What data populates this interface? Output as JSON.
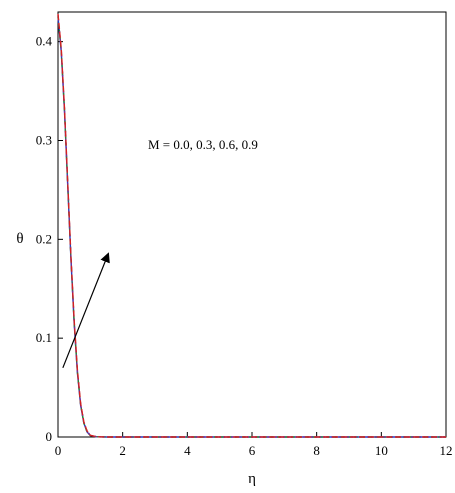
{
  "chart_data": {
    "type": "line",
    "title": "",
    "xlabel": "η",
    "ylabel": "θ",
    "xlim": [
      0,
      12
    ],
    "ylim": [
      0,
      0.43
    ],
    "xticks": [
      0,
      2,
      4,
      6,
      8,
      10,
      12
    ],
    "xtick_labels": [
      "0",
      "2",
      "4",
      "6",
      "8",
      "10",
      "12"
    ],
    "yticks": [
      0,
      0.1,
      0.2,
      0.3,
      0.4
    ],
    "ytick_labels": [
      "0",
      "0.1",
      "0.2",
      "0.3",
      "0.4"
    ],
    "grid": false,
    "annotation": "M = 0.0, 0.3, 0.6, 0.9",
    "arrow": {
      "from": [
        0.15,
        0.07
      ],
      "to": [
        1.55,
        0.185
      ]
    },
    "series": [
      {
        "color": "#1f3fbf",
        "dash": "none",
        "x": [
          0,
          0.1,
          0.2,
          0.3,
          0.4,
          0.5,
          0.6,
          0.7,
          0.8,
          0.9,
          1.0,
          1.2,
          1.5,
          2,
          4,
          6,
          8,
          10,
          12
        ],
        "y": [
          0.425,
          0.39,
          0.33,
          0.255,
          0.18,
          0.115,
          0.065,
          0.032,
          0.014,
          0.005,
          0.0015,
          0.0002,
          0,
          0,
          0,
          0,
          0,
          0,
          0
        ]
      },
      {
        "color": "#2a8a2a",
        "dash": "4 3",
        "x": [
          0,
          0.1,
          0.2,
          0.3,
          0.4,
          0.5,
          0.6,
          0.7,
          0.8,
          0.9,
          1.0,
          1.2,
          1.5,
          2,
          4,
          6,
          8,
          10,
          12
        ],
        "y": [
          0.426,
          0.391,
          0.331,
          0.256,
          0.181,
          0.116,
          0.066,
          0.033,
          0.014,
          0.005,
          0.0015,
          0.0002,
          0,
          0,
          0,
          0,
          0,
          0,
          0
        ]
      },
      {
        "color": "#7a2a9a",
        "dash": "2 2",
        "x": [
          0,
          0.1,
          0.2,
          0.3,
          0.4,
          0.5,
          0.6,
          0.7,
          0.8,
          0.9,
          1.0,
          1.2,
          1.5,
          2,
          4,
          6,
          8,
          10,
          12
        ],
        "y": [
          0.427,
          0.392,
          0.332,
          0.257,
          0.182,
          0.117,
          0.067,
          0.033,
          0.015,
          0.006,
          0.0016,
          0.0002,
          0,
          0,
          0,
          0,
          0,
          0,
          0
        ]
      },
      {
        "color": "#d42020",
        "dash": "6 3",
        "x": [
          0,
          0.1,
          0.2,
          0.3,
          0.4,
          0.5,
          0.6,
          0.7,
          0.8,
          0.9,
          1.0,
          1.2,
          1.5,
          2,
          4,
          6,
          8,
          10,
          12
        ],
        "y": [
          0.428,
          0.393,
          0.333,
          0.258,
          0.183,
          0.118,
          0.068,
          0.034,
          0.015,
          0.006,
          0.0017,
          0.0002,
          0,
          0,
          0,
          0,
          0,
          0,
          0
        ]
      }
    ]
  }
}
